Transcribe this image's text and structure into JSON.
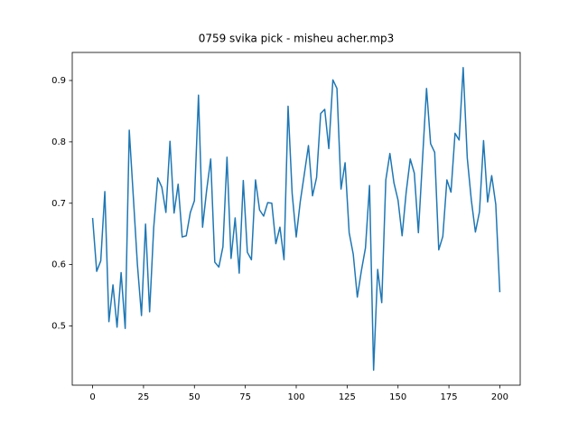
{
  "chart_data": {
    "type": "line",
    "title": "0759 svika pick - misheu acher.mp3",
    "x": [
      0,
      2,
      4,
      6,
      8,
      10,
      12,
      14,
      16,
      18,
      20,
      22,
      24,
      26,
      28,
      30,
      32,
      34,
      36,
      38,
      40,
      42,
      44,
      46,
      48,
      50,
      52,
      54,
      56,
      58,
      60,
      62,
      64,
      66,
      68,
      70,
      72,
      74,
      76,
      78,
      80,
      82,
      84,
      86,
      88,
      90,
      92,
      94,
      96,
      98,
      100,
      102,
      104,
      106,
      108,
      110,
      112,
      114,
      116,
      118,
      120,
      122,
      124,
      126,
      128,
      130,
      132,
      134,
      136,
      138,
      140,
      142,
      144,
      146,
      148,
      150,
      152,
      154,
      156,
      158,
      160,
      162,
      164,
      166,
      168,
      170,
      172,
      174,
      176,
      178,
      180,
      182,
      184,
      186,
      188,
      190,
      192,
      194,
      196,
      198,
      200
    ],
    "series": [
      {
        "color": "#1f77b4",
        "values": [
          0.676,
          0.589,
          0.606,
          0.719,
          0.507,
          0.567,
          0.498,
          0.587,
          0.496,
          0.819,
          0.71,
          0.6,
          0.517,
          0.666,
          0.523,
          0.66,
          0.741,
          0.726,
          0.685,
          0.801,
          0.684,
          0.731,
          0.645,
          0.647,
          0.685,
          0.704,
          0.876,
          0.661,
          0.721,
          0.772,
          0.604,
          0.596,
          0.629,
          0.775,
          0.61,
          0.676,
          0.586,
          0.737,
          0.62,
          0.608,
          0.738,
          0.689,
          0.679,
          0.701,
          0.7,
          0.634,
          0.661,
          0.608,
          0.858,
          0.716,
          0.645,
          0.703,
          0.748,
          0.794,
          0.712,
          0.742,
          0.846,
          0.853,
          0.789,
          0.901,
          0.887,
          0.723,
          0.766,
          0.652,
          0.617,
          0.547,
          0.59,
          0.627,
          0.729,
          0.428,
          0.592,
          0.538,
          0.738,
          0.781,
          0.733,
          0.705,
          0.647,
          0.718,
          0.772,
          0.749,
          0.652,
          0.77,
          0.887,
          0.797,
          0.783,
          0.624,
          0.646,
          0.738,
          0.718,
          0.814,
          0.803,
          0.921,
          0.774,
          0.705,
          0.653,
          0.686,
          0.802,
          0.702,
          0.745,
          0.698,
          0.555
        ]
      }
    ],
    "xlim": [
      -10,
      210
    ],
    "xticks": [
      0,
      25,
      50,
      75,
      100,
      125,
      150,
      175,
      200
    ],
    "ylim": [
      0.4035,
      0.9457
    ],
    "yticks": [
      0.5,
      0.6,
      0.7,
      0.8,
      0.9
    ],
    "grid": false
  }
}
